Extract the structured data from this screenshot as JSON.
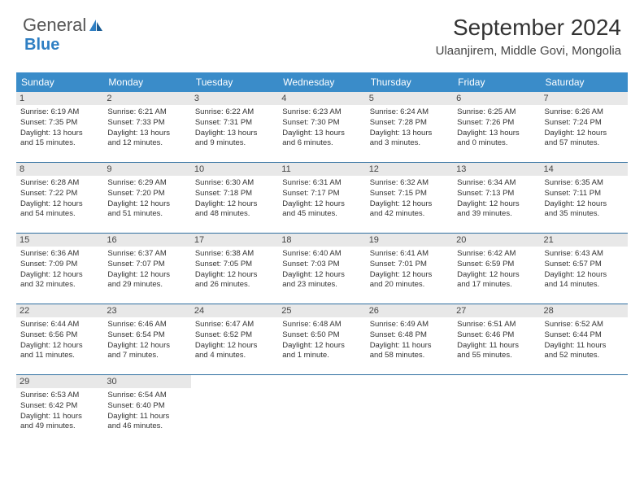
{
  "logo": {
    "text1": "General",
    "text2": "Blue"
  },
  "title": "September 2024",
  "location": "Ulaanjirem, Middle Govi, Mongolia",
  "colors": {
    "header_bg": "#3a8cc9",
    "header_text": "#ffffff",
    "daynum_bg": "#e8e8e8",
    "sep": "#2f6fa0",
    "logo_blue": "#2f7fc3"
  },
  "day_names": [
    "Sunday",
    "Monday",
    "Tuesday",
    "Wednesday",
    "Thursday",
    "Friday",
    "Saturday"
  ],
  "weeks": [
    [
      {
        "n": "1",
        "sr": "Sunrise: 6:19 AM",
        "ss": "Sunset: 7:35 PM",
        "d1": "Daylight: 13 hours",
        "d2": "and 15 minutes."
      },
      {
        "n": "2",
        "sr": "Sunrise: 6:21 AM",
        "ss": "Sunset: 7:33 PM",
        "d1": "Daylight: 13 hours",
        "d2": "and 12 minutes."
      },
      {
        "n": "3",
        "sr": "Sunrise: 6:22 AM",
        "ss": "Sunset: 7:31 PM",
        "d1": "Daylight: 13 hours",
        "d2": "and 9 minutes."
      },
      {
        "n": "4",
        "sr": "Sunrise: 6:23 AM",
        "ss": "Sunset: 7:30 PM",
        "d1": "Daylight: 13 hours",
        "d2": "and 6 minutes."
      },
      {
        "n": "5",
        "sr": "Sunrise: 6:24 AM",
        "ss": "Sunset: 7:28 PM",
        "d1": "Daylight: 13 hours",
        "d2": "and 3 minutes."
      },
      {
        "n": "6",
        "sr": "Sunrise: 6:25 AM",
        "ss": "Sunset: 7:26 PM",
        "d1": "Daylight: 13 hours",
        "d2": "and 0 minutes."
      },
      {
        "n": "7",
        "sr": "Sunrise: 6:26 AM",
        "ss": "Sunset: 7:24 PM",
        "d1": "Daylight: 12 hours",
        "d2": "and 57 minutes."
      }
    ],
    [
      {
        "n": "8",
        "sr": "Sunrise: 6:28 AM",
        "ss": "Sunset: 7:22 PM",
        "d1": "Daylight: 12 hours",
        "d2": "and 54 minutes."
      },
      {
        "n": "9",
        "sr": "Sunrise: 6:29 AM",
        "ss": "Sunset: 7:20 PM",
        "d1": "Daylight: 12 hours",
        "d2": "and 51 minutes."
      },
      {
        "n": "10",
        "sr": "Sunrise: 6:30 AM",
        "ss": "Sunset: 7:18 PM",
        "d1": "Daylight: 12 hours",
        "d2": "and 48 minutes."
      },
      {
        "n": "11",
        "sr": "Sunrise: 6:31 AM",
        "ss": "Sunset: 7:17 PM",
        "d1": "Daylight: 12 hours",
        "d2": "and 45 minutes."
      },
      {
        "n": "12",
        "sr": "Sunrise: 6:32 AM",
        "ss": "Sunset: 7:15 PM",
        "d1": "Daylight: 12 hours",
        "d2": "and 42 minutes."
      },
      {
        "n": "13",
        "sr": "Sunrise: 6:34 AM",
        "ss": "Sunset: 7:13 PM",
        "d1": "Daylight: 12 hours",
        "d2": "and 39 minutes."
      },
      {
        "n": "14",
        "sr": "Sunrise: 6:35 AM",
        "ss": "Sunset: 7:11 PM",
        "d1": "Daylight: 12 hours",
        "d2": "and 35 minutes."
      }
    ],
    [
      {
        "n": "15",
        "sr": "Sunrise: 6:36 AM",
        "ss": "Sunset: 7:09 PM",
        "d1": "Daylight: 12 hours",
        "d2": "and 32 minutes."
      },
      {
        "n": "16",
        "sr": "Sunrise: 6:37 AM",
        "ss": "Sunset: 7:07 PM",
        "d1": "Daylight: 12 hours",
        "d2": "and 29 minutes."
      },
      {
        "n": "17",
        "sr": "Sunrise: 6:38 AM",
        "ss": "Sunset: 7:05 PM",
        "d1": "Daylight: 12 hours",
        "d2": "and 26 minutes."
      },
      {
        "n": "18",
        "sr": "Sunrise: 6:40 AM",
        "ss": "Sunset: 7:03 PM",
        "d1": "Daylight: 12 hours",
        "d2": "and 23 minutes."
      },
      {
        "n": "19",
        "sr": "Sunrise: 6:41 AM",
        "ss": "Sunset: 7:01 PM",
        "d1": "Daylight: 12 hours",
        "d2": "and 20 minutes."
      },
      {
        "n": "20",
        "sr": "Sunrise: 6:42 AM",
        "ss": "Sunset: 6:59 PM",
        "d1": "Daylight: 12 hours",
        "d2": "and 17 minutes."
      },
      {
        "n": "21",
        "sr": "Sunrise: 6:43 AM",
        "ss": "Sunset: 6:57 PM",
        "d1": "Daylight: 12 hours",
        "d2": "and 14 minutes."
      }
    ],
    [
      {
        "n": "22",
        "sr": "Sunrise: 6:44 AM",
        "ss": "Sunset: 6:56 PM",
        "d1": "Daylight: 12 hours",
        "d2": "and 11 minutes."
      },
      {
        "n": "23",
        "sr": "Sunrise: 6:46 AM",
        "ss": "Sunset: 6:54 PM",
        "d1": "Daylight: 12 hours",
        "d2": "and 7 minutes."
      },
      {
        "n": "24",
        "sr": "Sunrise: 6:47 AM",
        "ss": "Sunset: 6:52 PM",
        "d1": "Daylight: 12 hours",
        "d2": "and 4 minutes."
      },
      {
        "n": "25",
        "sr": "Sunrise: 6:48 AM",
        "ss": "Sunset: 6:50 PM",
        "d1": "Daylight: 12 hours",
        "d2": "and 1 minute."
      },
      {
        "n": "26",
        "sr": "Sunrise: 6:49 AM",
        "ss": "Sunset: 6:48 PM",
        "d1": "Daylight: 11 hours",
        "d2": "and 58 minutes."
      },
      {
        "n": "27",
        "sr": "Sunrise: 6:51 AM",
        "ss": "Sunset: 6:46 PM",
        "d1": "Daylight: 11 hours",
        "d2": "and 55 minutes."
      },
      {
        "n": "28",
        "sr": "Sunrise: 6:52 AM",
        "ss": "Sunset: 6:44 PM",
        "d1": "Daylight: 11 hours",
        "d2": "and 52 minutes."
      }
    ],
    [
      {
        "n": "29",
        "sr": "Sunrise: 6:53 AM",
        "ss": "Sunset: 6:42 PM",
        "d1": "Daylight: 11 hours",
        "d2": "and 49 minutes."
      },
      {
        "n": "30",
        "sr": "Sunrise: 6:54 AM",
        "ss": "Sunset: 6:40 PM",
        "d1": "Daylight: 11 hours",
        "d2": "and 46 minutes."
      },
      {
        "empty": true
      },
      {
        "empty": true
      },
      {
        "empty": true
      },
      {
        "empty": true
      },
      {
        "empty": true
      }
    ]
  ]
}
